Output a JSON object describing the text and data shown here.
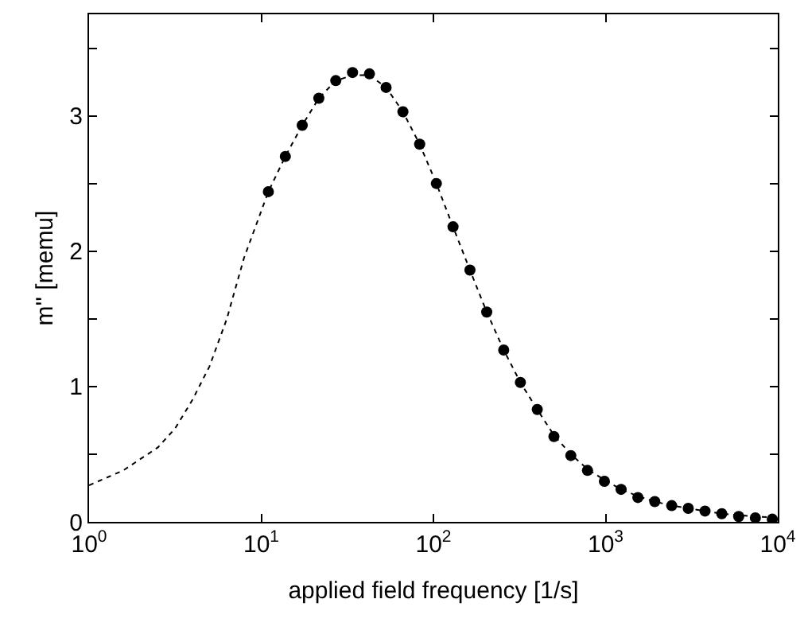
{
  "chart_data": {
    "type": "scatter",
    "xlabel": "applied field frequency [1/s]",
    "ylabel": "m'' [memu]",
    "log": "x",
    "xlim": [
      1,
      10000
    ],
    "xticks": [
      {
        "value": 1,
        "label": "10$^{0}$"
      },
      {
        "value": 10,
        "label": "10$^{1}$"
      },
      {
        "value": 100,
        "label": "10$^{2}$"
      },
      {
        "value": 1000,
        "label": "10$^{3}$"
      },
      {
        "value": 10000,
        "label": "10$^{4}$"
      }
    ],
    "ylim": [
      0,
      3.75
    ],
    "yticks": [
      0,
      {
        "value": 0.5,
        "label": null
      },
      1,
      {
        "value": 1.5,
        "label": null
      },
      2,
      {
        "value": 2.5,
        "label": null
      },
      3,
      {
        "value": 3.5,
        "label": null
      }
    ],
    "series": [
      {
        "type": "line",
        "color": "#000000",
        "line_style": "dotted",
        "marker": "none",
        "x": [
          1,
          1.58,
          2.51,
          3.16,
          3.98,
          5.01,
          6.31,
          7.94,
          11.0,
          13.8,
          17.3,
          21.6,
          27.1,
          33.9,
          42.5,
          53.1,
          66.5,
          83.2,
          104,
          130,
          163,
          204,
          256,
          320,
          401,
          501,
          628,
          785,
          984,
          1230,
          1540,
          1930,
          2420,
          3020,
          3780,
          4730,
          5930,
          7410,
          10000
        ],
        "values": [
          0.27,
          0.38,
          0.55,
          0.69,
          0.9,
          1.15,
          1.5,
          1.95,
          2.44,
          2.7,
          2.93,
          3.13,
          3.26,
          3.3,
          3.3,
          3.21,
          3.03,
          2.79,
          2.5,
          2.18,
          1.86,
          1.55,
          1.27,
          1.03,
          0.83,
          0.64,
          0.5,
          0.39,
          0.31,
          0.24,
          0.19,
          0.15,
          0.12,
          0.1,
          0.08,
          0.06,
          0.05,
          0.04,
          0.03
        ]
      },
      {
        "color": "#000000",
        "marker": "circle",
        "x": [
          11.0,
          13.8,
          17.3,
          21.6,
          27.1,
          33.9,
          42.5,
          53.1,
          66.5,
          83.2,
          104,
          130,
          163,
          204,
          256,
          320,
          401,
          501,
          628,
          785,
          984,
          1230,
          1540,
          1930,
          2420,
          3020,
          3780,
          4730,
          5930,
          7410,
          9290
        ],
        "values": [
          2.44,
          2.7,
          2.93,
          3.13,
          3.26,
          3.32,
          3.31,
          3.21,
          3.03,
          2.79,
          2.5,
          2.18,
          1.86,
          1.55,
          1.27,
          1.03,
          0.83,
          0.63,
          0.49,
          0.38,
          0.3,
          0.24,
          0.18,
          0.15,
          0.12,
          0.1,
          0.08,
          0.06,
          0.04,
          0.03,
          0.02
        ]
      }
    ]
  }
}
